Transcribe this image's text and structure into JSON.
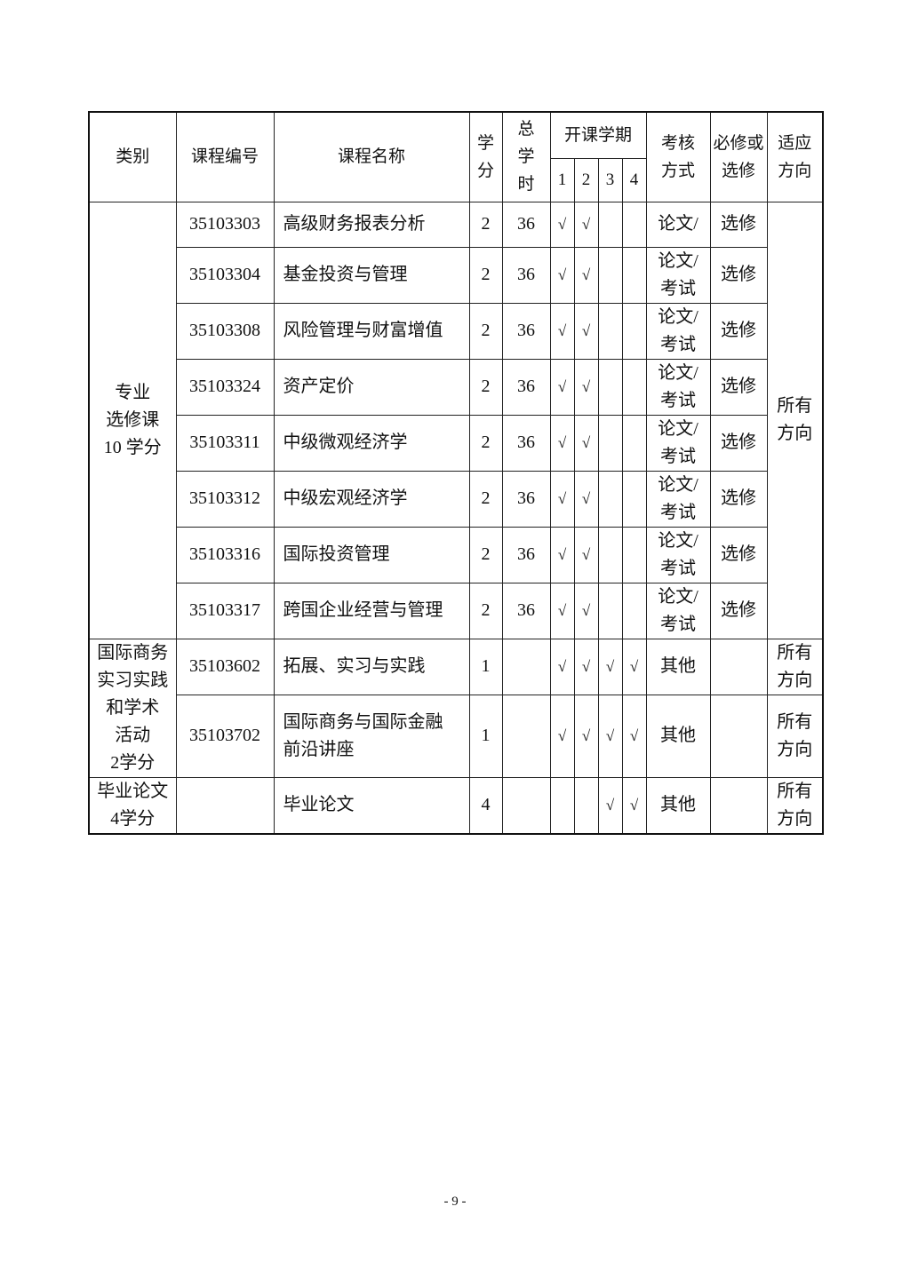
{
  "header": {
    "category": "类别",
    "code": "课程编号",
    "name": "课程名称",
    "credits": "学\n分",
    "hours": "总\n学\n时",
    "semester": "开课学期",
    "semesters": [
      "1",
      "2",
      "3",
      "4"
    ],
    "assessment": "考核\n方式",
    "required": "必修或\n选修",
    "direction": "适应\n方向"
  },
  "check_mark": "√",
  "groups": [
    {
      "category": "专业\n选修课\n10 学分",
      "direction_merged": "所有\n方向",
      "rows": [
        {
          "code": "35103303",
          "name": "高级财务报表分析",
          "credits": "2",
          "hours": "36",
          "sem": [
            true,
            true,
            false,
            false
          ],
          "assessment": "论文/",
          "type": "选修"
        },
        {
          "code": "35103304",
          "name": "基金投资与管理",
          "credits": "2",
          "hours": "36",
          "sem": [
            true,
            true,
            false,
            false
          ],
          "assessment": "论文/\n考试",
          "type": "选修"
        },
        {
          "code": "35103308",
          "name": "风险管理与财富增值",
          "credits": "2",
          "hours": "36",
          "sem": [
            true,
            true,
            false,
            false
          ],
          "assessment": "论文/\n考试",
          "type": "选修"
        },
        {
          "code": "35103324",
          "name": "资产定价",
          "credits": "2",
          "hours": "36",
          "sem": [
            true,
            true,
            false,
            false
          ],
          "assessment": "论文/\n考试",
          "type": "选修"
        },
        {
          "code": "35103311",
          "name": "中级微观经济学",
          "credits": "2",
          "hours": "36",
          "sem": [
            true,
            true,
            false,
            false
          ],
          "assessment": "论文/\n考试",
          "type": "选修"
        },
        {
          "code": "35103312",
          "name": "中级宏观经济学",
          "credits": "2",
          "hours": "36",
          "sem": [
            true,
            true,
            false,
            false
          ],
          "assessment": "论文/\n考试",
          "type": "选修"
        },
        {
          "code": "35103316",
          "name": "国际投资管理",
          "credits": "2",
          "hours": "36",
          "sem": [
            true,
            true,
            false,
            false
          ],
          "assessment": "论文/\n考试",
          "type": "选修"
        },
        {
          "code": "35103317",
          "name": "跨国企业经营与管理",
          "credits": "2",
          "hours": "36",
          "sem": [
            true,
            true,
            false,
            false
          ],
          "assessment": "论文/\n考试",
          "type": "选修"
        }
      ]
    },
    {
      "category": "国际商务\n实习实践\n和学术\n活动\n2学分",
      "rows": [
        {
          "code": "35103602",
          "name": "拓展、实习与实践",
          "credits": "1",
          "hours": "",
          "sem": [
            true,
            true,
            true,
            true
          ],
          "assessment": "其他",
          "type": "",
          "direction": "所有\n方向"
        },
        {
          "code": "35103702",
          "name": "国际商务与国际金融\n前沿讲座",
          "credits": "1",
          "hours": "",
          "sem": [
            true,
            true,
            true,
            true
          ],
          "assessment": "其他",
          "type": "",
          "direction": "所有\n方向"
        }
      ]
    },
    {
      "category": "毕业论文\n4学分",
      "rows": [
        {
          "code": "",
          "name": "毕业论文",
          "credits": "4",
          "hours": "",
          "sem": [
            false,
            false,
            true,
            true
          ],
          "assessment": "其他",
          "type": "",
          "direction": "所有\n方向"
        }
      ]
    }
  ],
  "page_number": "- 9 -"
}
